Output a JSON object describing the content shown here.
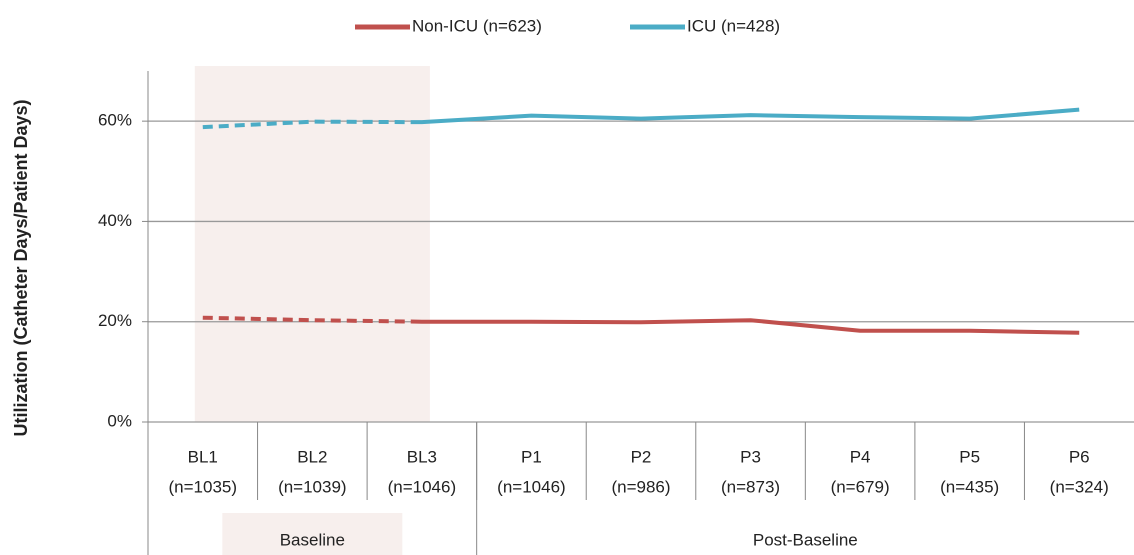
{
  "chart_data": {
    "type": "line",
    "y_label": "Utilization (Catheter Days/Patient Days)",
    "categories": [
      "BL1",
      "BL2",
      "BL3",
      "P1",
      "P2",
      "P3",
      "P4",
      "P5",
      "P6"
    ],
    "category_counts": [
      "(n=1035)",
      "(n=1039)",
      "(n=1046)",
      "(n=1046)",
      "(n=986)",
      "(n=873)",
      "(n=679)",
      "(n=435)",
      "(n=324)"
    ],
    "groups": [
      {
        "label": "Baseline",
        "span": 3,
        "shaded": true,
        "line_style": "dashed"
      },
      {
        "label": "Post-Baseline",
        "span": 6,
        "shaded": false,
        "line_style": "solid"
      }
    ],
    "series": [
      {
        "name": "Non-ICU (n=623)",
        "color": "#c0504d",
        "values": [
          20.8,
          20.3,
          20.0,
          20.0,
          19.9,
          20.3,
          18.2,
          18.2,
          17.8
        ]
      },
      {
        "name": "ICU (n=428)",
        "color": "#4bacc6",
        "values": [
          58.8,
          59.9,
          59.8,
          61.1,
          60.5,
          61.2,
          60.8,
          60.5,
          62.3
        ]
      }
    ],
    "ylim": [
      0,
      70
    ],
    "yticks": [
      {
        "value": 0,
        "label": "0%"
      },
      {
        "value": 20,
        "label": "20%"
      },
      {
        "value": 40,
        "label": "40%"
      },
      {
        "value": 60,
        "label": "60%"
      }
    ],
    "grid": true,
    "legend": "top"
  }
}
